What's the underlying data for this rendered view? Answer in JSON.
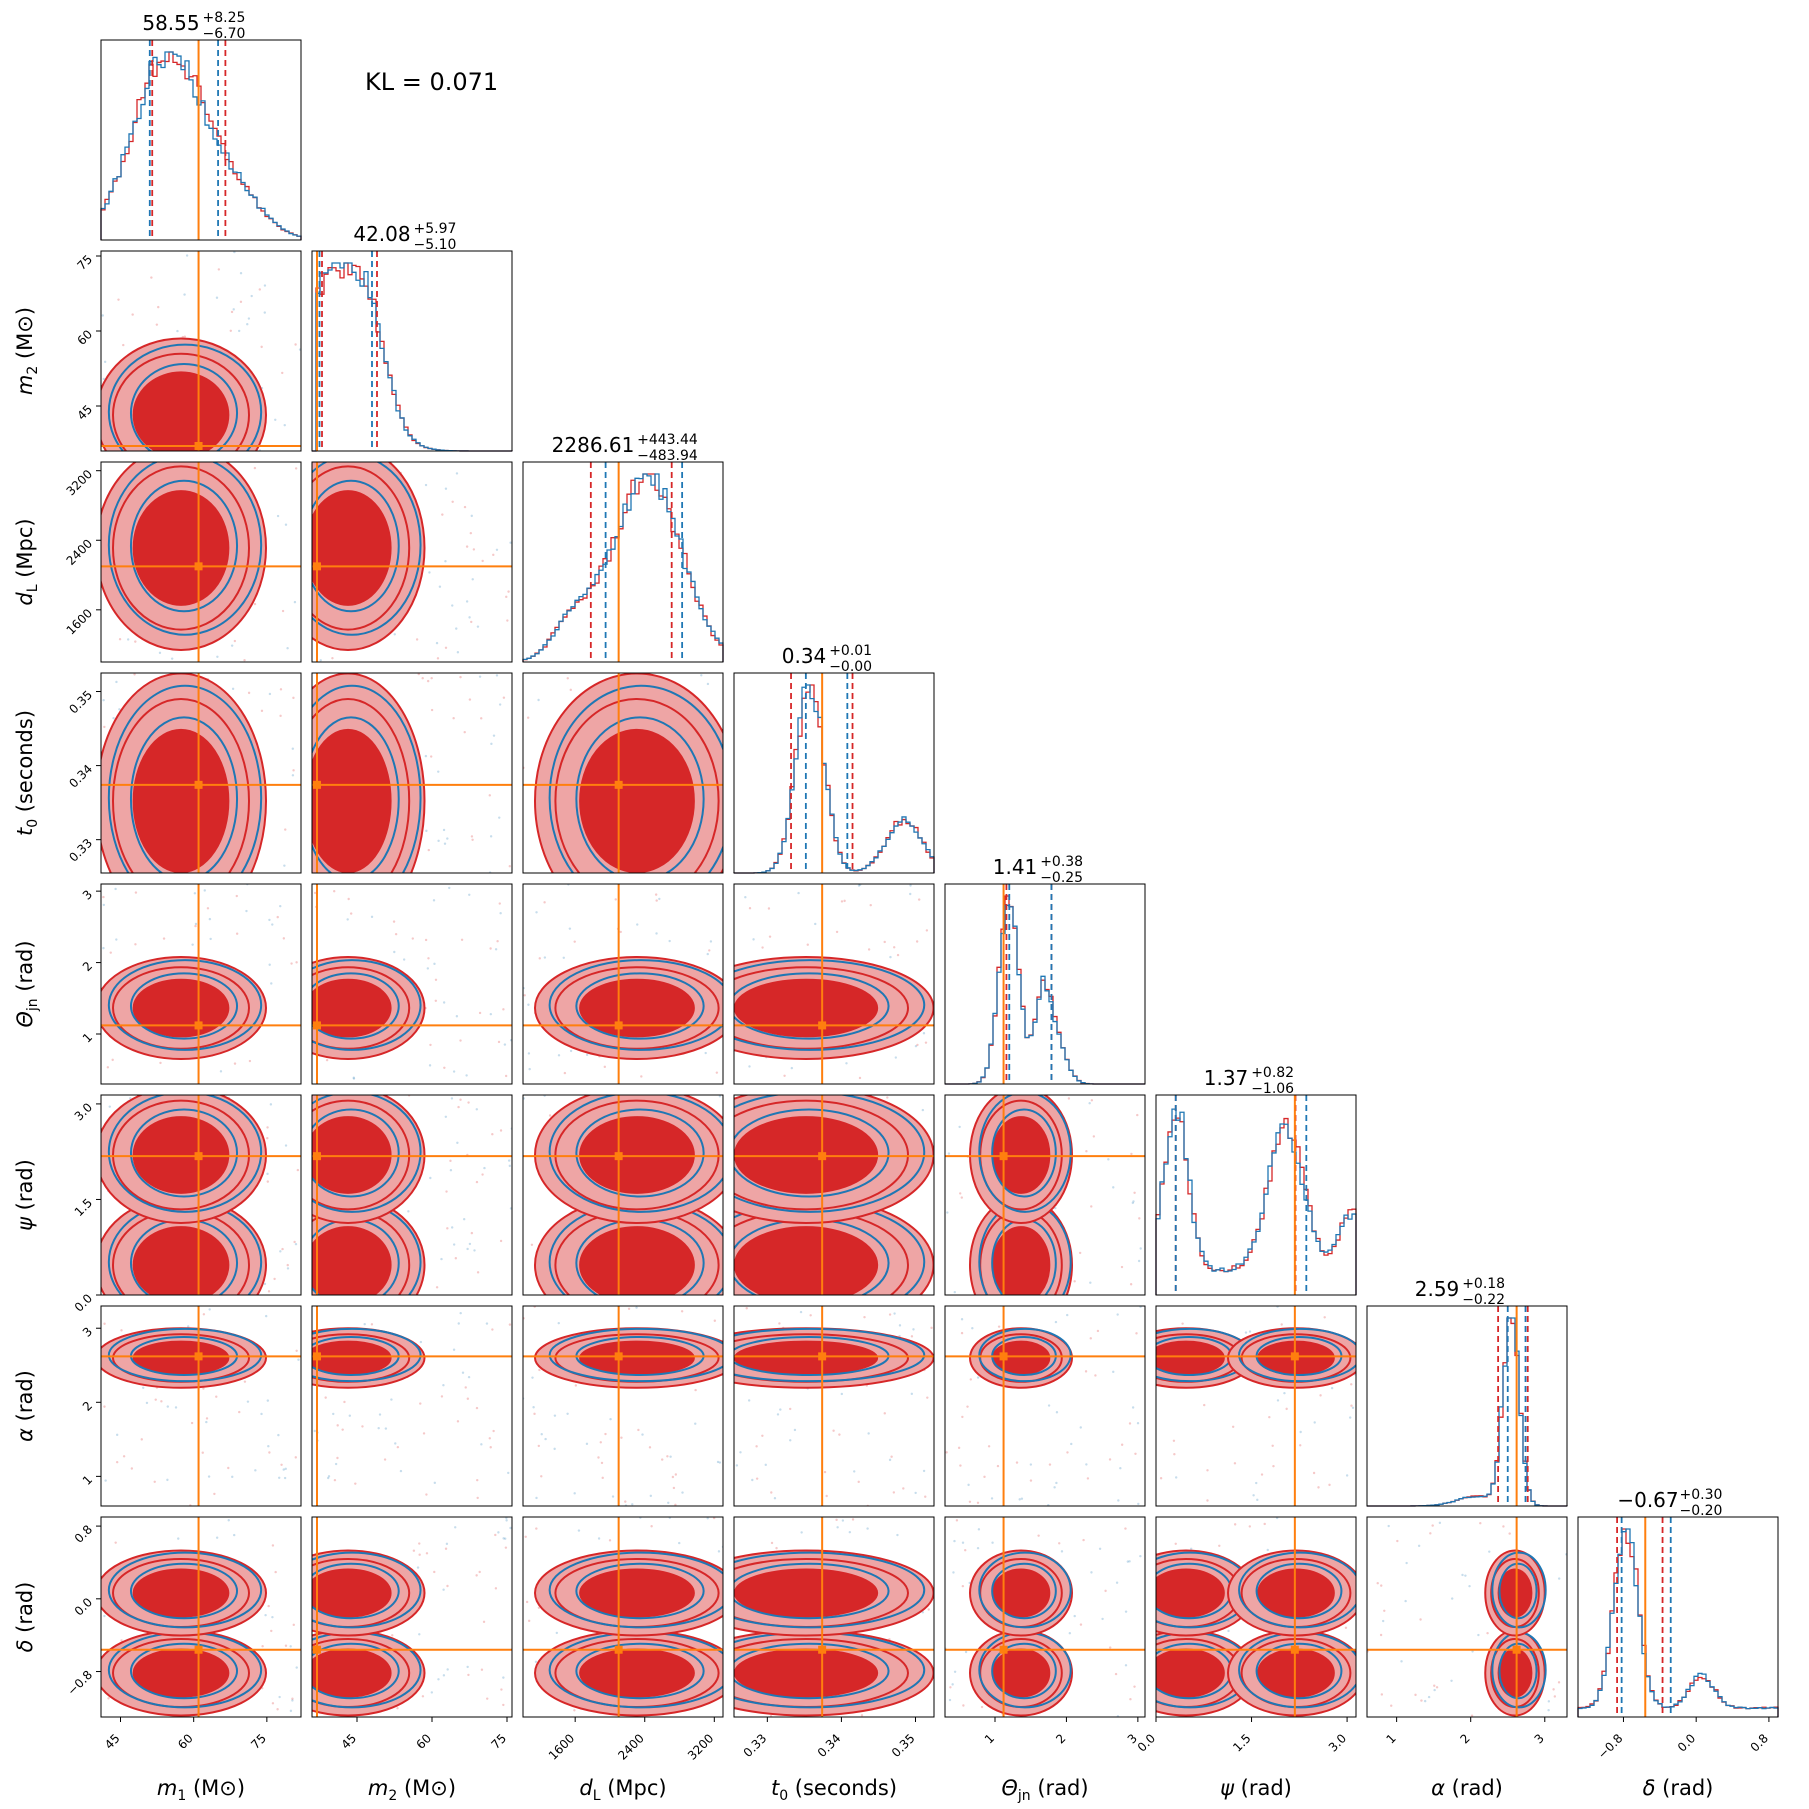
{
  "annotation": "KL = 0.071",
  "colors": {
    "red": "#d62728",
    "red_light": "#eea5a5",
    "blue": "#1f77b4",
    "orange": "#ff7f0e",
    "frame": "#000000"
  },
  "chart_data": {
    "type": "corner",
    "parameters": [
      {
        "key": "m1",
        "label_main": "m",
        "label_sub": "1",
        "label_unit": "(M⊙)",
        "range": [
          41,
          82
        ],
        "ticks": [
          45,
          60,
          75
        ],
        "tick_labels": [
          "45",
          "60",
          "75"
        ],
        "truth": 61,
        "title_value": "58.55",
        "err_plus": "+8.25",
        "err_minus": "−6.70",
        "q_red": [
          51.5,
          66.5
        ],
        "q_blue": [
          51.0,
          65.0
        ]
      },
      {
        "key": "m2",
        "label_main": "m",
        "label_sub": "2",
        "label_unit": "(M⊙)",
        "range": [
          36,
          76
        ],
        "ticks": [
          45,
          60,
          75
        ],
        "tick_labels": [
          "45",
          "60",
          "75"
        ],
        "truth": 37,
        "title_value": "42.08",
        "err_plus": "+5.97",
        "err_minus": "−5.10",
        "q_red": [
          38.0,
          49.0
        ],
        "q_blue": [
          37.5,
          48.0
        ]
      },
      {
        "key": "dL",
        "label_main": "d",
        "label_sub": "L",
        "label_unit": "(Mpc)",
        "range": [
          1000,
          3300
        ],
        "ticks": [
          1600,
          2400,
          3200
        ],
        "tick_labels": [
          "1600",
          "2400",
          "3200"
        ],
        "truth": 2100,
        "title_value": "2286.61",
        "err_plus": "+443.44",
        "err_minus": "−483.94",
        "q_red": [
          1780,
          2710
        ],
        "q_blue": [
          1950,
          2830
        ]
      },
      {
        "key": "t0",
        "label_main": "t",
        "label_sub": "0",
        "label_unit": "(seconds)",
        "range": [
          0.3255,
          0.3525
        ],
        "ticks": [
          0.33,
          0.34,
          0.35
        ],
        "tick_labels": [
          "0.33",
          "0.34",
          "0.35"
        ],
        "truth": 0.3374,
        "title_value": "0.34",
        "err_plus": "+0.01",
        "err_minus": "−0.00",
        "q_red": [
          0.3332,
          0.3415
        ],
        "q_blue": [
          0.3352,
          0.3408
        ]
      },
      {
        "key": "thetajn",
        "label_main": "Θ",
        "label_sub": "jn",
        "label_unit": "(rad)",
        "range": [
          0.3,
          3.1
        ],
        "ticks": [
          1,
          2,
          3
        ],
        "tick_labels": [
          "1",
          "2",
          "3"
        ],
        "truth": 1.12,
        "title_value": "1.41",
        "err_plus": "+0.38",
        "err_minus": "−0.25",
        "q_red": [
          1.16,
          1.79
        ],
        "q_blue": [
          1.2,
          1.79
        ]
      },
      {
        "key": "psi",
        "label_main": "ψ",
        "label_sub": "",
        "label_unit": "(rad)",
        "range": [
          0.0,
          3.14
        ],
        "ticks": [
          0.0,
          1.5,
          3.0
        ],
        "tick_labels": [
          "0.0",
          "1.5",
          "3.0"
        ],
        "truth": 2.18,
        "title_value": "1.37",
        "err_plus": "+0.82",
        "err_minus": "−1.06",
        "q_red": [
          0.31,
          2.19
        ],
        "q_blue": [
          0.31,
          2.36
        ]
      },
      {
        "key": "alpha",
        "label_main": "α",
        "label_sub": "",
        "label_unit": "(rad)",
        "range": [
          0.6,
          3.3
        ],
        "ticks": [
          1,
          2,
          3
        ],
        "tick_labels": [
          "1",
          "2",
          "3"
        ],
        "truth": 2.62,
        "title_value": "2.59",
        "err_plus": "+0.18",
        "err_minus": "−0.22",
        "q_red": [
          2.37,
          2.77
        ],
        "q_blue": [
          2.5,
          2.74
        ]
      },
      {
        "key": "delta",
        "label_main": "δ",
        "label_sub": "",
        "label_unit": "(rad)",
        "range": [
          -1.3,
          0.9
        ],
        "ticks": [
          -0.8,
          0.0,
          0.8
        ],
        "tick_labels": [
          "−0.8",
          "0.0",
          "0.8"
        ],
        "truth": -0.56,
        "title_value": "−0.67",
        "err_plus": "+0.30",
        "err_minus": "−0.20",
        "q_red": [
          -0.87,
          -0.37
        ],
        "q_blue": [
          -0.82,
          -0.28
        ]
      }
    ]
  }
}
